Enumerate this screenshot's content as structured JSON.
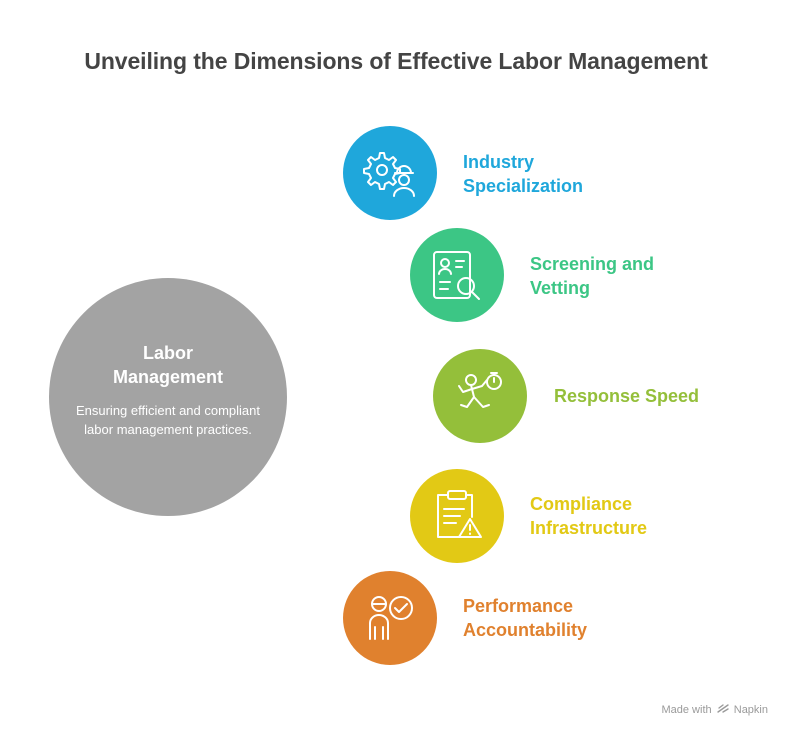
{
  "title": "Unveiling the Dimensions of Effective Labor Management",
  "hub": {
    "title": "Labor\nManagement",
    "description": "Ensuring efficient and compliant labor management practices.",
    "color": "#a3a3a3"
  },
  "items": [
    {
      "label": "Industry\nSpecialization",
      "color": "#1fa7db",
      "icon": "gear-worker-icon"
    },
    {
      "label": "Screening and\nVetting",
      "color": "#3cc685",
      "icon": "document-search-icon"
    },
    {
      "label": "Response Speed",
      "color": "#94bf3a",
      "icon": "running-stopwatch-icon"
    },
    {
      "label": "Compliance\nInfrastructure",
      "color": "#e2c915",
      "icon": "clipboard-warning-icon"
    },
    {
      "label": "Performance\nAccountability",
      "color": "#e0812e",
      "icon": "person-check-icon"
    }
  ],
  "credit": {
    "prefix": "Made with",
    "brand": "Napkin",
    "icon": "napkin-logo-icon"
  }
}
